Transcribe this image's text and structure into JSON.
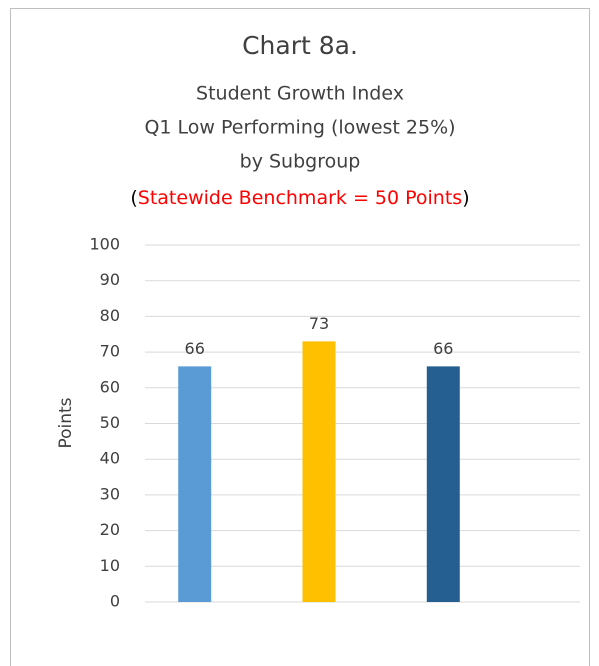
{
  "chart_data": {
    "type": "bar",
    "title": "Chart 8a.",
    "subtitle": [
      "Student Growth Index",
      "Q1 Low Performing (lowest 25%)",
      "by Subgroup"
    ],
    "benchmark_note": [
      {
        "text": "(",
        "color": "#000000"
      },
      {
        "text": "Statewide Benchmark = 50 Points",
        "color": "#ff0000"
      },
      {
        "text": ")",
        "color": "#000000"
      }
    ],
    "y_label": "Points",
    "categories": [
      null,
      null,
      null
    ],
    "values": [
      66,
      73,
      66
    ],
    "colors": [
      "#5b9bd5",
      "#ffc000",
      "#255e91"
    ],
    "ylim": [
      0,
      100
    ],
    "yticks": [
      0,
      10,
      20,
      30,
      40,
      50,
      60,
      70,
      80,
      90,
      100
    ],
    "grid": true
  }
}
